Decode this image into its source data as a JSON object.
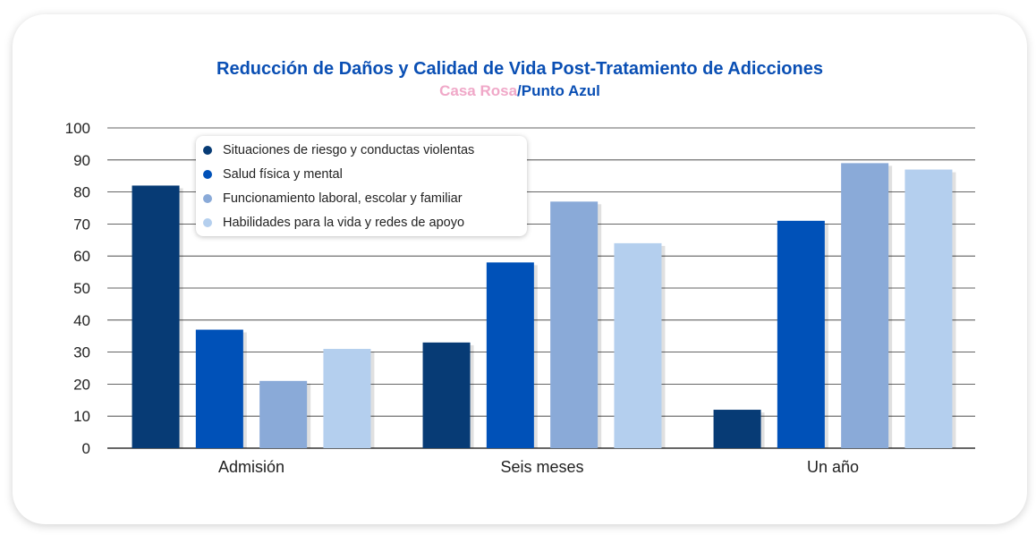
{
  "title": "Reducción de Daños y Calidad de Vida Post-Tratamiento de Adicciones",
  "subtitle_part1": "Casa Rosa",
  "subtitle_part2": "/Punto Azul",
  "colors": {
    "title": "#0a4fb4",
    "subtitle_rosa": "#f0a8c8",
    "grid": "#333333"
  },
  "chart_data": {
    "type": "bar",
    "categories": [
      "Admisión",
      "Seis meses",
      "Un año"
    ],
    "ylim": [
      0,
      100
    ],
    "yticks": [
      0,
      10,
      20,
      30,
      40,
      50,
      60,
      70,
      80,
      90,
      100
    ],
    "grid": true,
    "legend_position": "top-left",
    "series": [
      {
        "name": "Situaciones de riesgo y conductas violentas",
        "color": "#073b75",
        "values": [
          82,
          33,
          12
        ]
      },
      {
        "name": "Salud física y mental",
        "color": "#0051b8",
        "values": [
          37,
          58,
          71
        ]
      },
      {
        "name": "Funcionamiento laboral, escolar y familiar",
        "color": "#8aaad8",
        "values": [
          21,
          77,
          89
        ]
      },
      {
        "name": "Habilidades para la vida y redes de apoyo",
        "color": "#b4cfee",
        "values": [
          31,
          64,
          87
        ]
      }
    ]
  }
}
